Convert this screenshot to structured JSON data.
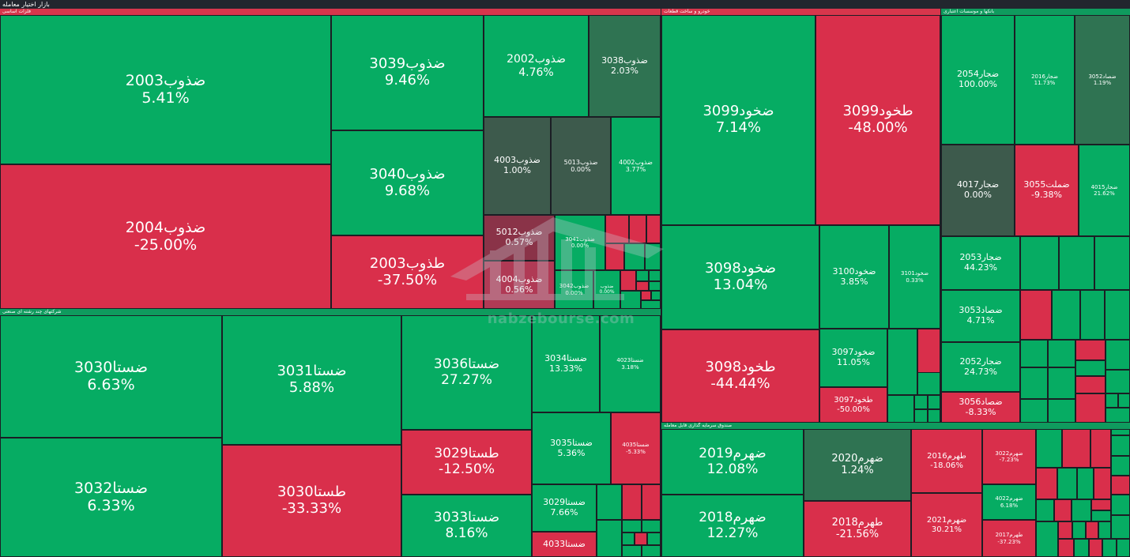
{
  "app_title": "بازار اختیار معامله",
  "watermark": "nabzebourse.com",
  "colors": {
    "green": "#06ac63",
    "red": "#d92f4b",
    "dark_green": "#2f7352",
    "gray": "#3d5a4c",
    "background": "#1b1e24"
  },
  "groups": [
    {
      "label": "فلزات اساسی"
    },
    {
      "label": "خودرو و ساخت قطعات"
    },
    {
      "label": "بانکها و موسسات اعتباری"
    },
    {
      "label": "شرکتهای چند رشته ای صنعتی"
    },
    {
      "label": "صندوق سرمایه گذاری قابل معامله"
    }
  ],
  "tiles": [
    {
      "name": "ضذوب2003",
      "pct": "5.41%"
    },
    {
      "name": "ضذوب2004",
      "pct": "-25.00%"
    },
    {
      "name": "ضذوب3039",
      "pct": "9.46%"
    },
    {
      "name": "ضذوب3040",
      "pct": "9.68%"
    },
    {
      "name": "طذوب2003",
      "pct": "-37.50%"
    },
    {
      "name": "ضذوب2002",
      "pct": "4.76%"
    },
    {
      "name": "ضذوب3038",
      "pct": "2.03%"
    },
    {
      "name": "ضذوب4003",
      "pct": "1.00%"
    },
    {
      "name": "ضذوب5013",
      "pct": "0.00%"
    },
    {
      "name": "ضذوب4002",
      "pct": "3.77%"
    },
    {
      "name": "ضذوب5012",
      "pct": "0.57%"
    },
    {
      "name": "ضذوب4004",
      "pct": "0.56%"
    },
    {
      "name": "ضذوب3041",
      "pct": "0.00%"
    },
    {
      "name": "ضذوب3042",
      "pct": "0.00%"
    },
    {
      "name": "ضذوب",
      "pct": "0.00%"
    },
    {
      "name": "ضخود3099",
      "pct": "7.14%"
    },
    {
      "name": "طخود3099",
      "pct": "-48.00%"
    },
    {
      "name": "ضخود3098",
      "pct": "13.04%"
    },
    {
      "name": "ضخود3100",
      "pct": "3.85%"
    },
    {
      "name": "ضخود3101",
      "pct": "0.33%"
    },
    {
      "name": "طخود3098",
      "pct": "-44.44%"
    },
    {
      "name": "ضخود3097",
      "pct": "11.05%"
    },
    {
      "name": "طخود3097",
      "pct": "-50.00%"
    },
    {
      "name": "ضجار2054",
      "pct": "100.00%"
    },
    {
      "name": "ضجار2016",
      "pct": "11.73%"
    },
    {
      "name": "ضصاد3052",
      "pct": "1.19%"
    },
    {
      "name": "ضجار4017",
      "pct": "0.00%"
    },
    {
      "name": "ضملت3055",
      "pct": "-9.38%"
    },
    {
      "name": "ضجار4015",
      "pct": "21.62%"
    },
    {
      "name": "ضجار2053",
      "pct": "44.23%"
    },
    {
      "name": "ضصاد3053",
      "pct": "4.71%"
    },
    {
      "name": "ضجار2052",
      "pct": "24.73%"
    },
    {
      "name": "ضصاد3056",
      "pct": "-8.33%"
    },
    {
      "name": "ضستا3030",
      "pct": "6.63%"
    },
    {
      "name": "ضستا3032",
      "pct": "6.33%"
    },
    {
      "name": "ضستا3031",
      "pct": "5.88%"
    },
    {
      "name": "طستا3030",
      "pct": "-33.33%"
    },
    {
      "name": "ضستا3036",
      "pct": "27.27%"
    },
    {
      "name": "طستا3029",
      "pct": "-12.50%"
    },
    {
      "name": "ضستا3033",
      "pct": "8.16%"
    },
    {
      "name": "ضستا3034",
      "pct": "13.33%"
    },
    {
      "name": "ضستا4023",
      "pct": "3.18%"
    },
    {
      "name": "ضستا3035",
      "pct": "5.36%"
    },
    {
      "name": "ضستا4035",
      "pct": "-5.33%"
    },
    {
      "name": "ضستا3029",
      "pct": "7.66%"
    },
    {
      "name": "ضستا4033",
      "pct": ""
    },
    {
      "name": "ضهرم2019",
      "pct": "12.08%"
    },
    {
      "name": "ضهرم2020",
      "pct": "1.24%"
    },
    {
      "name": "ضهرم2018",
      "pct": "12.27%"
    },
    {
      "name": "طهرم2018",
      "pct": "-21.56%"
    },
    {
      "name": "طهرم2016",
      "pct": "-18.06%"
    },
    {
      "name": "ضهرم2021",
      "pct": "30.21%"
    },
    {
      "name": "ضهرم3022",
      "pct": "-7.23%"
    },
    {
      "name": "ضهرم4022",
      "pct": "6.18%"
    },
    {
      "name": "طهرم2017",
      "pct": "-37.23%"
    }
  ]
}
